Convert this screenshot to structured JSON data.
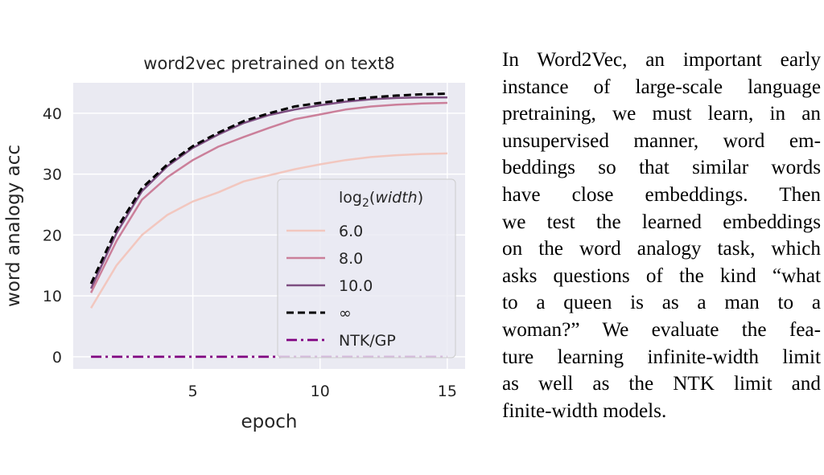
{
  "chart_data": {
    "type": "line",
    "title": "word2vec pretrained on text8",
    "xlabel": "epoch",
    "ylabel": "word analogy acc",
    "xlim": [
      0.3,
      15.7
    ],
    "ylim": [
      -2,
      45
    ],
    "xticks": [
      5,
      10,
      15
    ],
    "yticks": [
      0,
      10,
      20,
      30,
      40
    ],
    "grid": true,
    "legend_placement": "lower-right",
    "legend_title": "log2(width)",
    "x": [
      1,
      2,
      3,
      4,
      5,
      6,
      7,
      8,
      9,
      10,
      11,
      12,
      13,
      14,
      15
    ],
    "series": [
      {
        "name": "6.0",
        "color": "#f2c7bf",
        "dash": "solid",
        "values": [
          8,
          15,
          20,
          23.3,
          25.5,
          27,
          28.8,
          29.8,
          30.8,
          31.6,
          32.3,
          32.8,
          33.1,
          33.3,
          33.4
        ]
      },
      {
        "name": "8.0",
        "color": "#cb7f9a",
        "dash": "solid",
        "values": [
          10.5,
          19,
          25.8,
          29.5,
          32.3,
          34.5,
          36.1,
          37.6,
          39,
          39.8,
          40.6,
          41.1,
          41.4,
          41.6,
          41.7
        ]
      },
      {
        "name": "10.0",
        "color": "#7c4d80",
        "dash": "solid",
        "values": [
          11.2,
          20.3,
          27.2,
          31.3,
          34.3,
          36.5,
          38.4,
          39.7,
          40.6,
          41.3,
          41.9,
          42.3,
          42.5,
          42.6,
          42.6
        ]
      },
      {
        "name": "∞",
        "color": "#000000",
        "dash": "long",
        "values": [
          12,
          21,
          27.7,
          31.6,
          34.6,
          36.8,
          38.7,
          40,
          41.1,
          41.7,
          42.2,
          42.6,
          42.9,
          43.1,
          43.2
        ]
      },
      {
        "name": "NTK/GP",
        "color": "#800080",
        "dash": "dashdot",
        "values": [
          0,
          0,
          0,
          0,
          0,
          0,
          0,
          0,
          0,
          0,
          0,
          0,
          0,
          0,
          0
        ]
      }
    ]
  },
  "caption": {
    "lines": [
      "In Word2Vec, an important early",
      "instance of large-scale language",
      "pretraining, we must learn, in an",
      "unsupervised manner, word em-",
      "beddings so that similar words",
      "have close embeddings.  Then",
      "we test the learned embeddings",
      "on the word analogy task, which",
      "asks questions of the kind “what",
      "to a queen is as a man to a",
      "woman?”  We evaluate the fea-",
      "ture learning infinite-width limit",
      "as well as the NTK limit and",
      "finite-width models."
    ]
  }
}
